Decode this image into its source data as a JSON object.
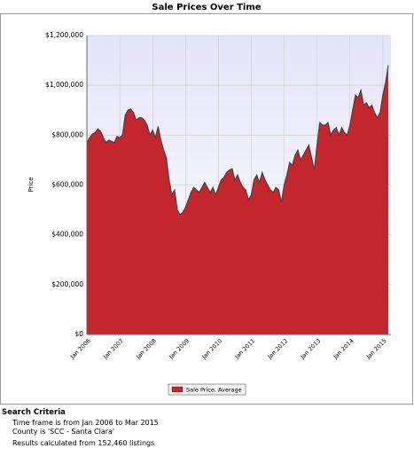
{
  "chart_data": {
    "type": "area",
    "title": "Sale Prices Over Time",
    "y_label": "Price",
    "categories": [
      "Jan 2006",
      null,
      null,
      null,
      null,
      null,
      null,
      null,
      null,
      null,
      null,
      null,
      "Jan 2007",
      null,
      null,
      null,
      null,
      null,
      null,
      null,
      null,
      null,
      null,
      null,
      "Jan 2008",
      null,
      null,
      null,
      null,
      null,
      null,
      null,
      null,
      null,
      null,
      null,
      "Jan 2009",
      null,
      null,
      null,
      null,
      null,
      null,
      null,
      null,
      null,
      null,
      null,
      "Jan 2010",
      null,
      null,
      null,
      null,
      null,
      null,
      null,
      null,
      null,
      null,
      null,
      "Jan 2011",
      null,
      null,
      null,
      null,
      null,
      null,
      null,
      null,
      null,
      null,
      null,
      "Jan 2012",
      null,
      null,
      null,
      null,
      null,
      null,
      null,
      null,
      null,
      null,
      null,
      "Jan 2013",
      null,
      null,
      null,
      null,
      null,
      null,
      null,
      null,
      null,
      null,
      null,
      "Jan 2014",
      null,
      null,
      null,
      null,
      null,
      null,
      null,
      null,
      null,
      null,
      null,
      "Jan 2015",
      null,
      null
    ],
    "series": [
      {
        "name": "Sale Price, Average",
        "color": "#c4262e",
        "values": [
          770000,
          790000,
          805000,
          810000,
          825000,
          815000,
          790000,
          770000,
          780000,
          775000,
          770000,
          795000,
          790000,
          800000,
          880000,
          900000,
          905000,
          890000,
          860000,
          870000,
          870000,
          860000,
          840000,
          800000,
          820000,
          790000,
          835000,
          780000,
          740000,
          710000,
          620000,
          560000,
          580000,
          500000,
          480000,
          490000,
          510000,
          540000,
          570000,
          590000,
          580000,
          570000,
          590000,
          610000,
          590000,
          570000,
          590000,
          560000,
          590000,
          620000,
          630000,
          650000,
          660000,
          665000,
          620000,
          640000,
          610000,
          590000,
          580000,
          540000,
          560000,
          620000,
          640000,
          610000,
          650000,
          620000,
          600000,
          580000,
          570000,
          590000,
          580000,
          530000,
          600000,
          640000,
          690000,
          680000,
          720000,
          740000,
          700000,
          720000,
          740000,
          760000,
          710000,
          660000,
          760000,
          850000,
          840000,
          840000,
          850000,
          800000,
          820000,
          830000,
          800000,
          830000,
          810000,
          800000,
          840000,
          900000,
          960000,
          950000,
          980000,
          920000,
          930000,
          910000,
          920000,
          890000,
          870000,
          890000,
          960000,
          1010000,
          1080000
        ]
      }
    ],
    "ylim": [
      0,
      1200000
    ],
    "yticks": [
      {
        "value": 0,
        "label": "$0"
      },
      {
        "value": 200000,
        "label": "$200,000"
      },
      {
        "value": 400000,
        "label": "$400,000"
      },
      {
        "value": 600000,
        "label": "$600,000"
      },
      {
        "value": 800000,
        "label": "$800,000"
      },
      {
        "value": 1000000,
        "label": "$1,000,000"
      },
      {
        "value": 1200000,
        "label": "$1,200,000"
      }
    ],
    "grid": true,
    "legend": "bottom"
  },
  "search_criteria": {
    "title": "Search Criteria",
    "lines": [
      "Time frame is from Jan 2006 to Mar 2015",
      "County is 'SCC - Santa Clara'",
      "Results calculated from 152,460 listings"
    ]
  }
}
